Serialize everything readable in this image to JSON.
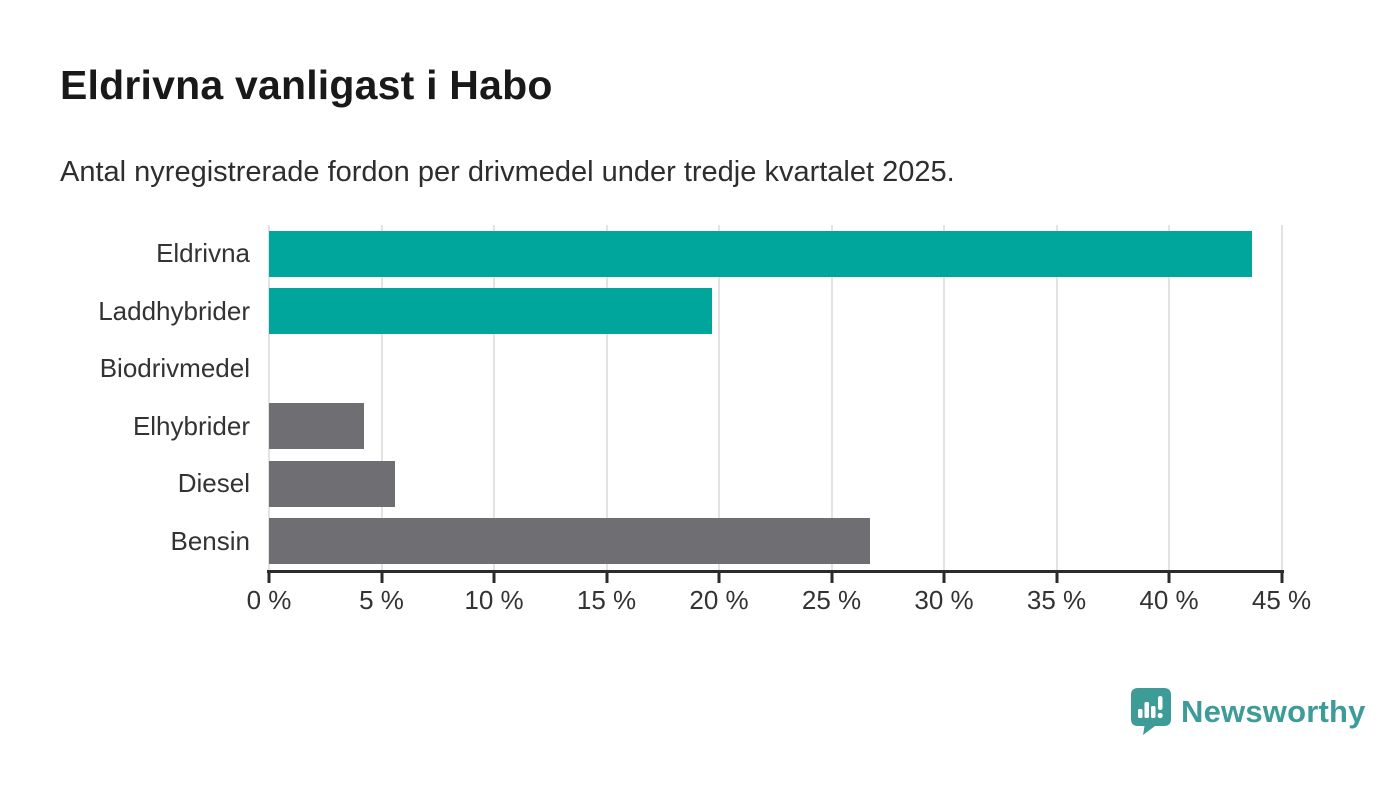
{
  "header": {
    "title": "Eldrivna vanligast i Habo",
    "subtitle": "Antal nyregistrerade fordon per drivmedel under tredje kvartalet 2025."
  },
  "chart_data": {
    "type": "bar",
    "orientation": "horizontal",
    "categories": [
      "Eldrivna",
      "Laddhybrider",
      "Biodrivmedel",
      "Elhybrider",
      "Diesel",
      "Bensin"
    ],
    "values": [
      43.7,
      19.7,
      0,
      4.2,
      5.6,
      26.7
    ],
    "unit": "%",
    "bar_colors": [
      "#00a69c",
      "#00a69c",
      "#00a69c",
      "#6e6e73",
      "#6e6e73",
      "#6e6e73"
    ],
    "xlim": [
      0,
      45
    ],
    "x_ticks": [
      0,
      5,
      10,
      15,
      20,
      25,
      30,
      35,
      40,
      45
    ],
    "x_tick_labels": [
      "0 %",
      "5 %",
      "10 %",
      "15 %",
      "20 %",
      "25 %",
      "30 %",
      "35 %",
      "40 %",
      "45 %"
    ],
    "grid": true,
    "legend": "none",
    "title": "Eldrivna vanligast i Habo",
    "xlabel": "",
    "ylabel": ""
  },
  "colors": {
    "accent_teal": "#00a69c",
    "neutral_gray": "#6e6e73",
    "axis": "#2b2b2b",
    "gridline": "#e3e3e3",
    "text": "#333333",
    "brand_teal": "#3d9b98"
  },
  "footer": {
    "brand_name": "Newsworthy",
    "brand_icon": "newsworthy-speech-bubble-bar-chart-icon"
  }
}
